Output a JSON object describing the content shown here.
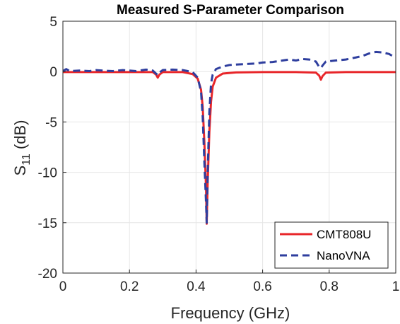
{
  "chart_data": {
    "type": "line",
    "title": "Measured S-Parameter Comparison",
    "xlabel": "Frequency (GHz)",
    "ylabel": {
      "base": "S",
      "sub": "11",
      "rest": " (dB)"
    },
    "xlim": [
      0,
      1
    ],
    "ylim": [
      -20,
      5
    ],
    "x_ticks": [
      "0",
      "0.2",
      "0.4",
      "0.6",
      "0.8",
      "1"
    ],
    "y_ticks": [
      "5",
      "0",
      "-5",
      "-10",
      "-15",
      "-20"
    ],
    "grid": true,
    "legend_position": "bottom-right",
    "series": [
      {
        "name": "CMT808U",
        "color": "#e8262a",
        "style": "solid",
        "points": [
          [
            0.0,
            -0.05
          ],
          [
            0.1,
            -0.05
          ],
          [
            0.2,
            -0.05
          ],
          [
            0.27,
            -0.05
          ],
          [
            0.28,
            -0.3
          ],
          [
            0.285,
            -0.6
          ],
          [
            0.29,
            -0.3
          ],
          [
            0.3,
            -0.05
          ],
          [
            0.36,
            -0.05
          ],
          [
            0.39,
            -0.25
          ],
          [
            0.405,
            -0.7
          ],
          [
            0.415,
            -1.8
          ],
          [
            0.42,
            -3.5
          ],
          [
            0.425,
            -7.0
          ],
          [
            0.43,
            -11.5
          ],
          [
            0.432,
            -15.1
          ],
          [
            0.435,
            -11.0
          ],
          [
            0.44,
            -6.0
          ],
          [
            0.445,
            -3.0
          ],
          [
            0.45,
            -1.5
          ],
          [
            0.46,
            -0.6
          ],
          [
            0.48,
            -0.2
          ],
          [
            0.52,
            -0.08
          ],
          [
            0.6,
            -0.05
          ],
          [
            0.7,
            -0.05
          ],
          [
            0.76,
            -0.1
          ],
          [
            0.77,
            -0.4
          ],
          [
            0.775,
            -0.8
          ],
          [
            0.78,
            -0.45
          ],
          [
            0.79,
            -0.1
          ],
          [
            0.85,
            -0.05
          ],
          [
            0.9,
            -0.05
          ],
          [
            1.0,
            -0.05
          ]
        ]
      },
      {
        "name": "NanoVNA",
        "color": "#2e3e9e",
        "style": "dashed",
        "points": [
          [
            0.0,
            0.05
          ],
          [
            0.01,
            0.25
          ],
          [
            0.02,
            0.05
          ],
          [
            0.05,
            0.1
          ],
          [
            0.08,
            0.05
          ],
          [
            0.1,
            0.15
          ],
          [
            0.12,
            0.1
          ],
          [
            0.15,
            0.05
          ],
          [
            0.18,
            0.15
          ],
          [
            0.2,
            0.1
          ],
          [
            0.22,
            0.05
          ],
          [
            0.25,
            0.2
          ],
          [
            0.27,
            0.1
          ],
          [
            0.28,
            -0.2
          ],
          [
            0.285,
            -0.35
          ],
          [
            0.29,
            -0.1
          ],
          [
            0.3,
            0.15
          ],
          [
            0.33,
            0.2
          ],
          [
            0.36,
            0.15
          ],
          [
            0.39,
            -0.05
          ],
          [
            0.405,
            -0.6
          ],
          [
            0.415,
            -2.0
          ],
          [
            0.42,
            -4.5
          ],
          [
            0.425,
            -9.0
          ],
          [
            0.43,
            -13.0
          ],
          [
            0.432,
            -15.0
          ],
          [
            0.435,
            -10.0
          ],
          [
            0.44,
            -4.0
          ],
          [
            0.445,
            -1.2
          ],
          [
            0.45,
            -0.3
          ],
          [
            0.46,
            0.25
          ],
          [
            0.48,
            0.5
          ],
          [
            0.5,
            0.65
          ],
          [
            0.52,
            0.7
          ],
          [
            0.55,
            0.75
          ],
          [
            0.58,
            0.8
          ],
          [
            0.6,
            0.9
          ],
          [
            0.63,
            0.95
          ],
          [
            0.65,
            1.05
          ],
          [
            0.68,
            1.2
          ],
          [
            0.7,
            1.1
          ],
          [
            0.72,
            1.25
          ],
          [
            0.74,
            1.2
          ],
          [
            0.76,
            1.0
          ],
          [
            0.77,
            0.45
          ],
          [
            0.775,
            0.35
          ],
          [
            0.78,
            0.6
          ],
          [
            0.79,
            1.0
          ],
          [
            0.82,
            1.1
          ],
          [
            0.85,
            1.2
          ],
          [
            0.88,
            1.4
          ],
          [
            0.9,
            1.55
          ],
          [
            0.92,
            1.8
          ],
          [
            0.94,
            1.95
          ],
          [
            0.96,
            1.9
          ],
          [
            0.98,
            1.75
          ],
          [
            0.99,
            1.55
          ],
          [
            1.0,
            1.6
          ]
        ]
      }
    ]
  }
}
